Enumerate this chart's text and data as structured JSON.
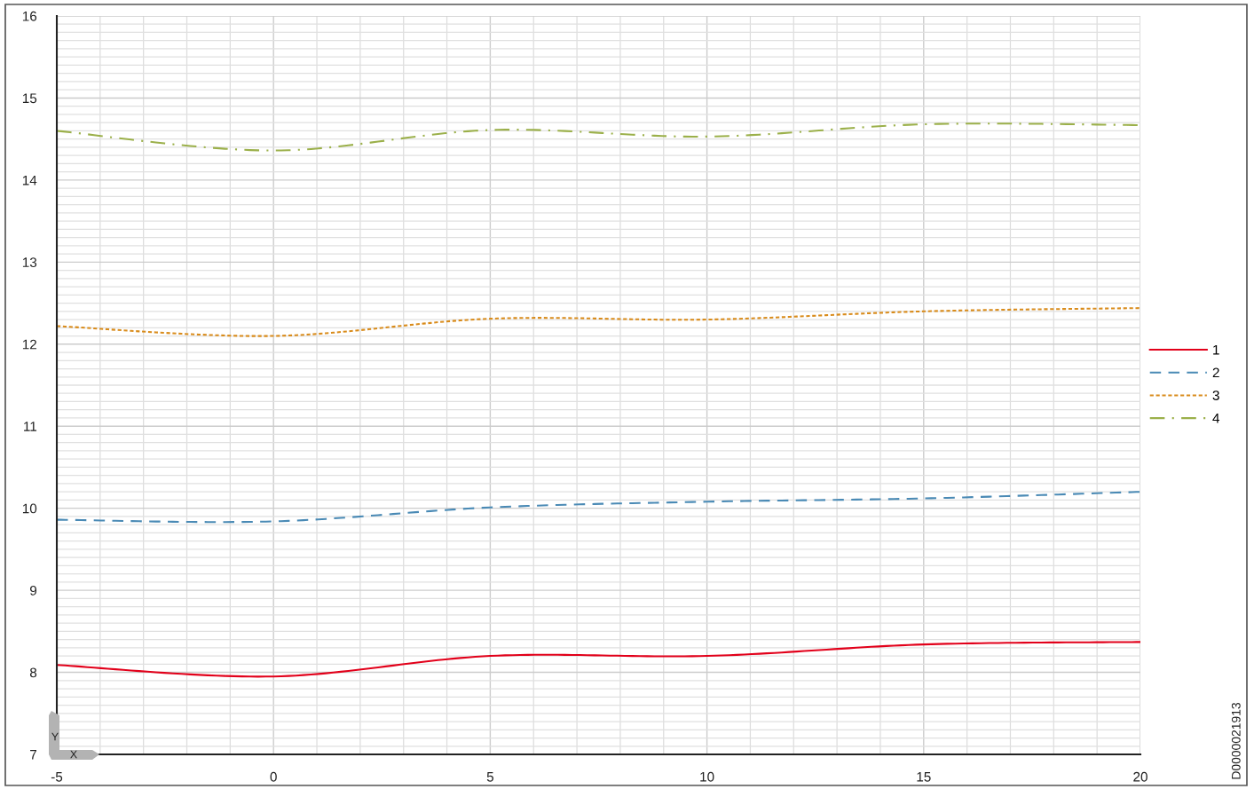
{
  "chart_data": {
    "type": "line",
    "xlabel": "X",
    "ylabel": "Y",
    "x": [
      -5,
      0,
      5,
      10,
      15,
      20
    ],
    "series": [
      {
        "name": "1",
        "color": "#e2001a",
        "line_style": "solid",
        "values": [
          8.09,
          7.95,
          8.2,
          8.2,
          8.34,
          8.37
        ]
      },
      {
        "name": "2",
        "color": "#4a8ab5",
        "line_style": "dashed",
        "values": [
          9.86,
          9.84,
          10.01,
          10.08,
          10.12,
          10.2
        ]
      },
      {
        "name": "3",
        "color": "#d98c1c",
        "line_style": "dotted",
        "values": [
          12.22,
          12.1,
          12.31,
          12.3,
          12.4,
          12.44
        ]
      },
      {
        "name": "4",
        "color": "#9bb04a",
        "line_style": "dashdot",
        "values": [
          14.6,
          14.36,
          14.61,
          14.53,
          14.68,
          14.67
        ]
      }
    ],
    "xlim": [
      -5,
      20
    ],
    "xticks": [
      -5,
      0,
      5,
      10,
      15,
      20
    ],
    "ylim": [
      7,
      16
    ],
    "yticks": [
      7,
      8,
      9,
      10,
      11,
      12,
      13,
      14,
      15,
      16
    ],
    "grid": true,
    "legend": "right",
    "marker": "none",
    "annotations": [
      "D0000021913"
    ]
  }
}
